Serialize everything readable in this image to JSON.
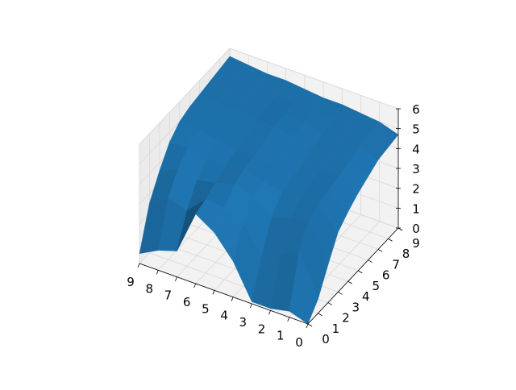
{
  "chart_data": {
    "type": "surface3d",
    "x_ticks": [
      "0",
      "1",
      "2",
      "3",
      "4",
      "5",
      "6",
      "7",
      "8",
      "9"
    ],
    "y_ticks": [
      "0",
      "1",
      "2",
      "3",
      "4",
      "5",
      "6",
      "7",
      "8",
      "9"
    ],
    "z_ticks": [
      "0",
      "1",
      "2",
      "3",
      "4",
      "5",
      "6"
    ],
    "xlim": [
      0,
      9
    ],
    "ylim": [
      0,
      9
    ],
    "zlim": [
      0,
      6
    ],
    "grid": true,
    "surface_color": "#1f77b4",
    "z": [
      [
        0.0,
        0.7,
        1.9,
        3.0,
        3.5,
        3.9,
        4.2,
        4.5,
        4.6,
        4.7
      ],
      [
        0.3,
        2.8,
        3.9,
        4.1,
        4.3,
        4.4,
        4.6,
        4.8,
        4.9,
        5.0
      ],
      [
        0.1,
        2.3,
        3.6,
        4.0,
        4.2,
        4.4,
        4.6,
        4.8,
        5.0,
        5.1
      ],
      [
        0.1,
        1.9,
        3.3,
        4.0,
        4.2,
        4.4,
        4.6,
        4.8,
        5.0,
        5.2
      ],
      [
        1.8,
        3.2,
        3.9,
        4.2,
        4.4,
        4.6,
        4.8,
        5.0,
        5.1,
        5.2
      ],
      [
        2.9,
        3.6,
        4.2,
        4.5,
        4.6,
        4.8,
        5.0,
        5.1,
        5.2,
        5.3
      ],
      [
        3.5,
        3.7,
        4.0,
        4.3,
        4.6,
        4.8,
        5.0,
        5.1,
        5.2,
        5.4
      ],
      [
        1.3,
        2.8,
        3.8,
        4.4,
        4.7,
        4.9,
        5.1,
        5.2,
        5.3,
        5.4
      ],
      [
        1.0,
        3.1,
        4.0,
        4.6,
        4.9,
        5.0,
        5.2,
        5.3,
        5.4,
        5.5
      ],
      [
        0.5,
        2.5,
        3.6,
        4.5,
        5.0,
        5.2,
        5.3,
        5.4,
        5.5,
        5.6
      ]
    ]
  }
}
